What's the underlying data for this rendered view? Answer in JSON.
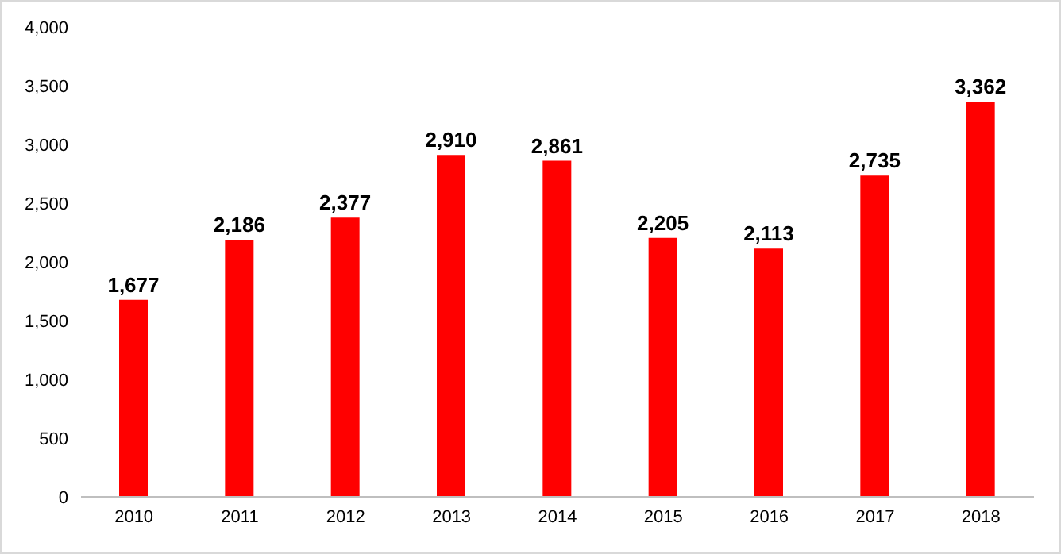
{
  "chart_data": {
    "type": "bar",
    "categories": [
      "2010",
      "2011",
      "2012",
      "2013",
      "2014",
      "2015",
      "2016",
      "2017",
      "2018"
    ],
    "values": [
      1677,
      2186,
      2377,
      2910,
      2861,
      2205,
      2113,
      2735,
      3362
    ],
    "value_labels": [
      "1,677",
      "2,186",
      "2,377",
      "2,910",
      "2,861",
      "2,205",
      "2,113",
      "2,735",
      "3,362"
    ],
    "color": "#ff0000",
    "ylim": [
      0,
      4000
    ],
    "yticks": [
      {
        "value": 0,
        "label": "0"
      },
      {
        "value": 500,
        "label": "500"
      },
      {
        "value": 1000,
        "label": "1,000"
      },
      {
        "value": 1500,
        "label": "1,500"
      },
      {
        "value": 2000,
        "label": "2,000"
      },
      {
        "value": 2500,
        "label": "2,500"
      },
      {
        "value": 3000,
        "label": "3,000"
      },
      {
        "value": 3500,
        "label": "3,500"
      },
      {
        "value": 4000,
        "label": "4,000"
      }
    ],
    "grid": false,
    "legend": false
  }
}
